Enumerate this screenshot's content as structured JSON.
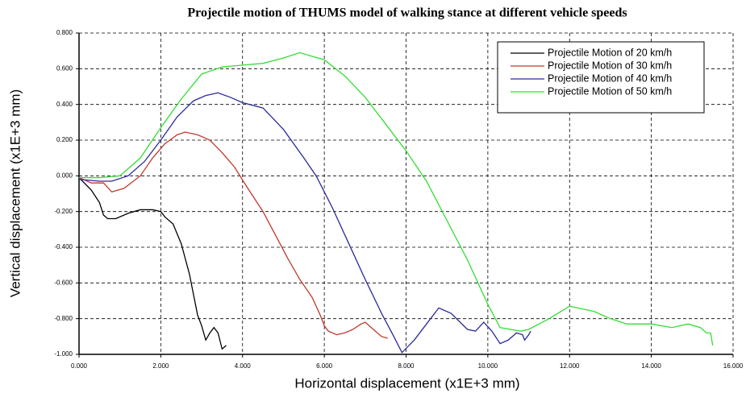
{
  "chart_data": {
    "type": "line",
    "title": "Projectile motion of THUMS model of walking stance at different vehicle speeds",
    "x_label": "Horizontal displacement (x1E+3 mm)",
    "y_label": "Vertical displacement (x1E+3 mm)",
    "xlim": [
      0,
      16
    ],
    "ylim": [
      -1,
      0.8
    ],
    "xticks": [
      {
        "value": 0,
        "label": "0.000"
      },
      {
        "value": 2,
        "label": "2.000"
      },
      {
        "value": 4,
        "label": "4.000"
      },
      {
        "value": 6,
        "label": "6.000"
      },
      {
        "value": 8,
        "label": "8.000"
      },
      {
        "value": 10,
        "label": "10.000"
      },
      {
        "value": 12,
        "label": "12.000"
      },
      {
        "value": 14,
        "label": "14.000"
      },
      {
        "value": 16,
        "label": "16.000"
      }
    ],
    "yticks": [
      {
        "value": -1,
        "label": "-1.000"
      },
      {
        "value": -0.8,
        "label": "-0.800"
      },
      {
        "value": -0.6,
        "label": "-0.600"
      },
      {
        "value": -0.4,
        "label": "-0.400"
      },
      {
        "value": -0.2,
        "label": "-0.200"
      },
      {
        "value": 0,
        "label": "0.000"
      },
      {
        "value": 0.2,
        "label": "0.200"
      },
      {
        "value": 0.4,
        "label": "0.400"
      },
      {
        "value": 0.6,
        "label": "0.600"
      },
      {
        "value": 0.8,
        "label": "0.800"
      }
    ],
    "grid": true,
    "legend": "upper right",
    "series": [
      {
        "name": "Projectile Motion of 20 km/h",
        "color": "#000000",
        "x": [
          0,
          0.3,
          0.5,
          0.6,
          0.7,
          0.9,
          1.2,
          1.5,
          1.8,
          2.0,
          2.1,
          2.3,
          2.5,
          2.7,
          2.9,
          3.0,
          3.1,
          3.2,
          3.3,
          3.4,
          3.5,
          3.55,
          3.6
        ],
        "values": [
          -0.01,
          -0.08,
          -0.15,
          -0.22,
          -0.24,
          -0.24,
          -0.21,
          -0.19,
          -0.19,
          -0.2,
          -0.23,
          -0.27,
          -0.38,
          -0.55,
          -0.78,
          -0.84,
          -0.92,
          -0.88,
          -0.85,
          -0.88,
          -0.97,
          -0.96,
          -0.95
        ]
      },
      {
        "name": "Projectile Motion of 30 km/h",
        "color": "#c0392b",
        "x": [
          0,
          0.3,
          0.6,
          0.8,
          1.1,
          1.5,
          1.8,
          2.1,
          2.4,
          2.6,
          2.9,
          3.2,
          3.5,
          3.8,
          4.1,
          4.5,
          4.8,
          5.1,
          5.4,
          5.7,
          5.9,
          6.0,
          6.1,
          6.3,
          6.5,
          6.7,
          6.9,
          7.0,
          7.2,
          7.4,
          7.55
        ],
        "values": [
          -0.01,
          -0.04,
          -0.04,
          -0.09,
          -0.07,
          0.0,
          0.1,
          0.18,
          0.23,
          0.245,
          0.23,
          0.2,
          0.13,
          0.05,
          -0.06,
          -0.2,
          -0.33,
          -0.46,
          -0.58,
          -0.68,
          -0.78,
          -0.84,
          -0.87,
          -0.89,
          -0.88,
          -0.86,
          -0.83,
          -0.82,
          -0.86,
          -0.9,
          -0.91
        ]
      },
      {
        "name": "Projectile Motion of 40 km/h",
        "color": "#2a2a9a",
        "x": [
          0,
          0.5,
          0.8,
          1.2,
          1.6,
          2.0,
          2.4,
          2.8,
          3.1,
          3.4,
          3.7,
          4.0,
          4.5,
          5.0,
          5.5,
          5.8,
          6.2,
          6.6,
          7.0,
          7.4,
          7.7,
          7.9,
          8.2,
          8.5,
          8.8,
          9.1,
          9.5,
          9.7,
          9.9,
          10.1,
          10.3,
          10.5,
          10.7,
          10.85,
          10.9,
          11.0,
          11.05
        ],
        "values": [
          -0.02,
          -0.03,
          -0.03,
          0.0,
          0.08,
          0.2,
          0.33,
          0.42,
          0.45,
          0.465,
          0.44,
          0.41,
          0.38,
          0.26,
          0.1,
          0.0,
          -0.18,
          -0.38,
          -0.58,
          -0.77,
          -0.9,
          -0.99,
          -0.92,
          -0.83,
          -0.74,
          -0.77,
          -0.86,
          -0.87,
          -0.82,
          -0.87,
          -0.94,
          -0.92,
          -0.88,
          -0.89,
          -0.92,
          -0.89,
          -0.87
        ]
      },
      {
        "name": "Projectile Motion of 50 km/h",
        "color": "#33dd33",
        "x": [
          0,
          0.5,
          1.0,
          1.5,
          2.0,
          2.5,
          3.0,
          3.5,
          4.0,
          4.5,
          5.0,
          5.4,
          5.7,
          6.0,
          6.5,
          7.0,
          7.5,
          8.0,
          8.5,
          9.0,
          9.5,
          10.0,
          10.3,
          10.8,
          11.0,
          11.5,
          12.0,
          12.6,
          13.0,
          13.4,
          14.0,
          14.5,
          14.9,
          15.2,
          15.35,
          15.45,
          15.5
        ],
        "values": [
          -0.01,
          -0.01,
          0.0,
          0.1,
          0.27,
          0.43,
          0.57,
          0.61,
          0.62,
          0.63,
          0.66,
          0.69,
          0.67,
          0.65,
          0.56,
          0.44,
          0.29,
          0.14,
          -0.03,
          -0.25,
          -0.47,
          -0.72,
          -0.85,
          -0.87,
          -0.86,
          -0.8,
          -0.73,
          -0.76,
          -0.8,
          -0.83,
          -0.83,
          -0.85,
          -0.83,
          -0.85,
          -0.88,
          -0.88,
          -0.95
        ]
      }
    ]
  }
}
